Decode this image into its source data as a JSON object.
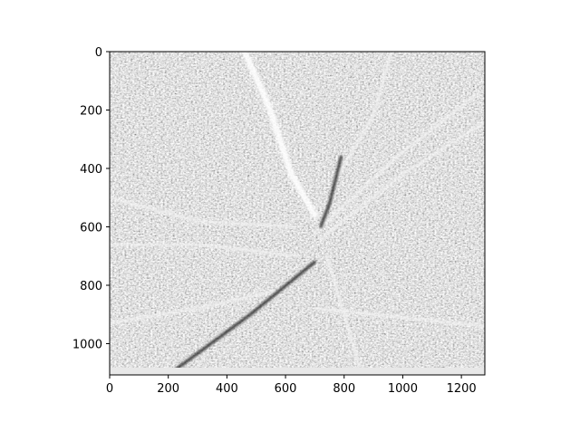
{
  "chart_data": {
    "type": "heatmap",
    "title": "",
    "xlabel": "",
    "ylabel": "",
    "colormap": "gray",
    "image_extent": {
      "x": [
        0,
        1280
      ],
      "y": [
        0,
        1107
      ]
    },
    "xlim": [
      0,
      1280
    ],
    "ylim": [
      1107,
      0
    ],
    "y_inverted": true,
    "x_ticks": [
      0,
      200,
      400,
      600,
      800,
      1000,
      1200
    ],
    "x_tick_labels": [
      "0",
      "200",
      "400",
      "600",
      "800",
      "1000",
      "1200"
    ],
    "y_ticks": [
      0,
      200,
      400,
      600,
      800,
      1000
    ],
    "y_tick_labels": [
      "0",
      "200",
      "400",
      "600",
      "800",
      "1000"
    ],
    "grid": false,
    "legend": "none",
    "background_texture": "high-contrast grayscale noise",
    "features": [
      {
        "name": "main-bright-streak",
        "shade": "white",
        "points": [
          [
            460,
            0
          ],
          [
            540,
            180
          ],
          [
            620,
            420
          ],
          [
            700,
            560
          ]
        ]
      },
      {
        "name": "left-upper-streak",
        "shade": "light",
        "points": [
          [
            0,
            500
          ],
          [
            300,
            580
          ],
          [
            620,
            600
          ]
        ]
      },
      {
        "name": "left-mid-streak",
        "shade": "light",
        "points": [
          [
            0,
            660
          ],
          [
            300,
            660
          ],
          [
            640,
            700
          ]
        ]
      },
      {
        "name": "left-lower-streak",
        "shade": "light",
        "points": [
          [
            0,
            930
          ],
          [
            300,
            880
          ],
          [
            560,
            820
          ]
        ]
      },
      {
        "name": "right-upper-streak",
        "shade": "light",
        "points": [
          [
            1280,
            240
          ],
          [
            1000,
            420
          ],
          [
            720,
            640
          ]
        ]
      },
      {
        "name": "right-upper-streak-2",
        "shade": "light",
        "points": [
          [
            1260,
            140
          ],
          [
            980,
            360
          ],
          [
            700,
            620
          ]
        ]
      },
      {
        "name": "right-lower-streak",
        "shade": "light",
        "points": [
          [
            1280,
            940
          ],
          [
            1000,
            910
          ],
          [
            700,
            880
          ]
        ]
      },
      {
        "name": "top-right-streak",
        "shade": "light",
        "points": [
          [
            960,
            0
          ],
          [
            900,
            220
          ],
          [
            780,
            420
          ]
        ]
      },
      {
        "name": "bottom-left-dark-streak",
        "shade": "dark",
        "points": [
          [
            200,
            1107
          ],
          [
            480,
            900
          ],
          [
            700,
            720
          ]
        ]
      },
      {
        "name": "dark-central-streak",
        "shade": "dark",
        "points": [
          [
            790,
            360
          ],
          [
            750,
            520
          ],
          [
            720,
            600
          ]
        ]
      },
      {
        "name": "bottom-right-streak",
        "shade": "light",
        "points": [
          [
            860,
            1107
          ],
          [
            800,
            900
          ],
          [
            740,
            700
          ]
        ]
      }
    ]
  }
}
